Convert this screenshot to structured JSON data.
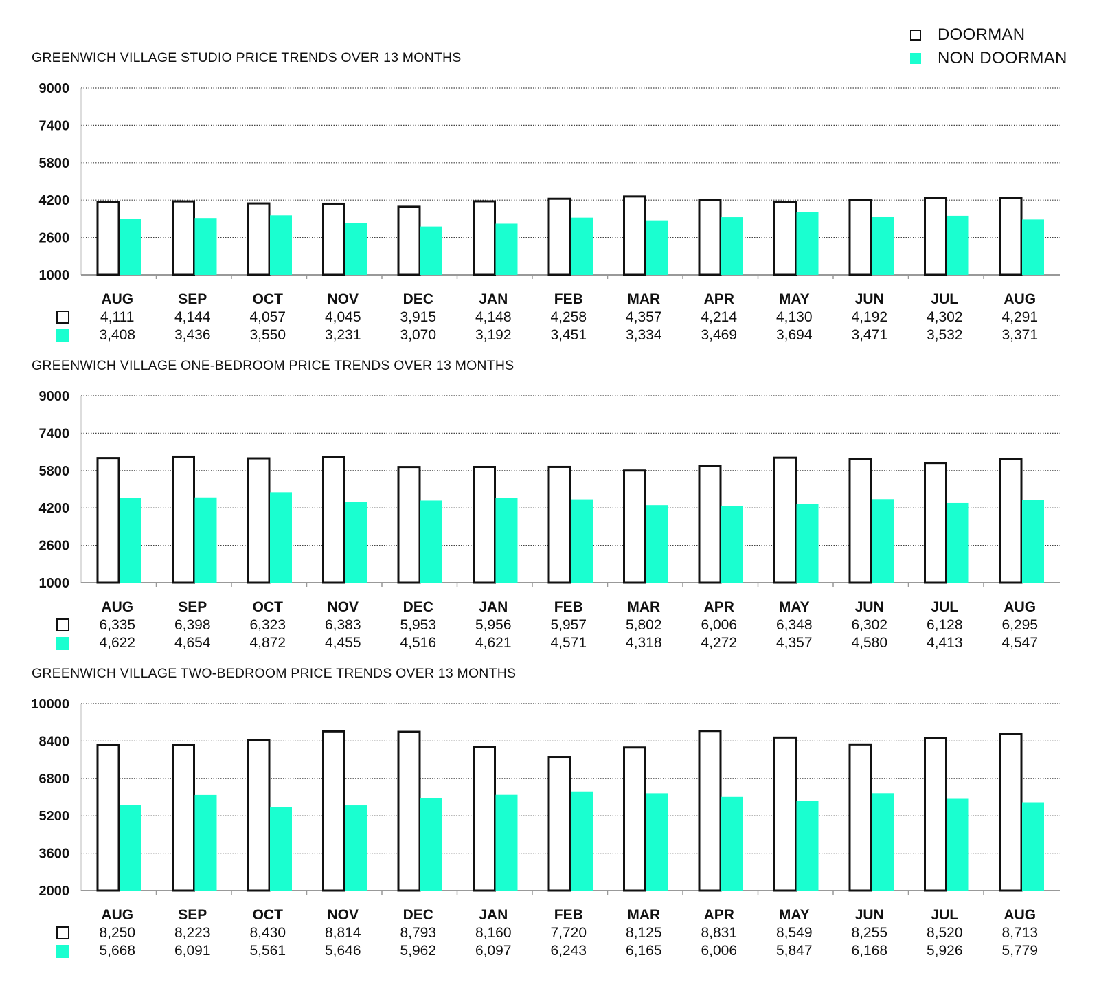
{
  "legend": {
    "doorman": "DOORMAN",
    "non_doorman": "NON DOORMAN"
  },
  "colors": {
    "doorman_fill": "#ffffff",
    "doorman_stroke": "#111111",
    "non_doorman_fill": "#1affd0",
    "text": "#111111"
  },
  "chart_data": [
    {
      "type": "bar",
      "title": "GREENWICH VILLAGE STUDIO PRICE TRENDS OVER 13 MONTHS",
      "categories": [
        "AUG",
        "SEP",
        "OCT",
        "NOV",
        "DEC",
        "JAN",
        "FEB",
        "MAR",
        "APR",
        "MAY",
        "JUN",
        "JUL",
        "AUG"
      ],
      "ylim": [
        1000,
        9000
      ],
      "yticks": [
        "9000",
        "7400",
        "5800",
        "4200",
        "2600",
        "1000"
      ],
      "series": [
        {
          "name": "DOORMAN",
          "values": [
            4111,
            4144,
            4057,
            4045,
            3915,
            4148,
            4258,
            4357,
            4214,
            4130,
            4192,
            4302,
            4291
          ],
          "labels": [
            "4,111",
            "4,144",
            "4,057",
            "4,045",
            "3,915",
            "4,148",
            "4,258",
            "4,357",
            "4,214",
            "4,130",
            "4,192",
            "4,302",
            "4,291"
          ]
        },
        {
          "name": "NON DOORMAN",
          "values": [
            3408,
            3436,
            3550,
            3231,
            3070,
            3192,
            3451,
            3334,
            3469,
            3694,
            3471,
            3532,
            3371
          ],
          "labels": [
            "3,408",
            "3,436",
            "3,550",
            "3,231",
            "3,070",
            "3,192",
            "3,451",
            "3,334",
            "3,469",
            "3,694",
            "3,471",
            "3,532",
            "3,371"
          ]
        }
      ]
    },
    {
      "type": "bar",
      "title": "GREENWICH VILLAGE ONE-BEDROOM PRICE TRENDS OVER 13 MONTHS",
      "categories": [
        "AUG",
        "SEP",
        "OCT",
        "NOV",
        "DEC",
        "JAN",
        "FEB",
        "MAR",
        "APR",
        "MAY",
        "JUN",
        "JUL",
        "AUG"
      ],
      "ylim": [
        1000,
        9000
      ],
      "yticks": [
        "9000",
        "7400",
        "5800",
        "4200",
        "2600",
        "1000"
      ],
      "series": [
        {
          "name": "DOORMAN",
          "values": [
            6335,
            6398,
            6323,
            6383,
            5953,
            5956,
            5957,
            5802,
            6006,
            6348,
            6302,
            6128,
            6295
          ],
          "labels": [
            "6,335",
            "6,398",
            "6,323",
            "6,383",
            "5,953",
            "5,956",
            "5,957",
            "5,802",
            "6,006",
            "6,348",
            "6,302",
            "6,128",
            "6,295"
          ]
        },
        {
          "name": "NON DOORMAN",
          "values": [
            4622,
            4654,
            4872,
            4455,
            4516,
            4621,
            4571,
            4318,
            4272,
            4357,
            4580,
            4413,
            4547
          ],
          "labels": [
            "4,622",
            "4,654",
            "4,872",
            "4,455",
            "4,516",
            "4,621",
            "4,571",
            "4,318",
            "4,272",
            "4,357",
            "4,580",
            "4,413",
            "4,547"
          ]
        }
      ]
    },
    {
      "type": "bar",
      "title": "GREENWICH VILLAGE TWO-BEDROOM PRICE TRENDS OVER 13 MONTHS",
      "categories": [
        "AUG",
        "SEP",
        "OCT",
        "NOV",
        "DEC",
        "JAN",
        "FEB",
        "MAR",
        "APR",
        "MAY",
        "JUN",
        "JUL",
        "AUG"
      ],
      "ylim": [
        2000,
        10000
      ],
      "yticks": [
        "10000",
        "8400",
        "6800",
        "5200",
        "3600",
        "2000"
      ],
      "series": [
        {
          "name": "DOORMAN",
          "values": [
            8250,
            8223,
            8430,
            8814,
            8793,
            8160,
            7720,
            8125,
            8831,
            8549,
            8255,
            8520,
            8713
          ],
          "labels": [
            "8,250",
            "8,223",
            "8,430",
            "8,814",
            "8,793",
            "8,160",
            "7,720",
            "8,125",
            "8,831",
            "8,549",
            "8,255",
            "8,520",
            "8,713"
          ]
        },
        {
          "name": "NON DOORMAN",
          "values": [
            5668,
            6091,
            5561,
            5646,
            5962,
            6097,
            6243,
            6165,
            6006,
            5847,
            6168,
            5926,
            5779
          ],
          "labels": [
            "5,668",
            "6,091",
            "5,561",
            "5,646",
            "5,962",
            "6,097",
            "6,243",
            "6,165",
            "6,006",
            "5,847",
            "6,168",
            "5,926",
            "5,779"
          ]
        }
      ]
    }
  ]
}
